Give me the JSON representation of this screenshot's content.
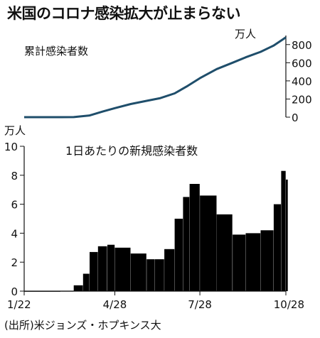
{
  "title": "米国のコロナ感染拡大が止まらない",
  "source": "(出所)米ジョンズ・ホプキンス大",
  "chart_data": [
    {
      "type": "line",
      "title": "累計感染者数",
      "unit": "万人",
      "ylim": [
        0,
        900
      ],
      "yticks": [
        "0",
        "200",
        "400",
        "600",
        "800"
      ],
      "color": "#1f4e6b",
      "x": [
        "1/22",
        "2/1",
        "2/15",
        "3/1",
        "3/15",
        "4/1",
        "4/15",
        "4/28",
        "5/15",
        "6/1",
        "6/15",
        "7/1",
        "7/15",
        "7/28",
        "8/15",
        "9/1",
        "9/15",
        "10/1",
        "10/15",
        "10/28"
      ],
      "values": [
        0,
        0,
        0,
        0,
        1,
        19,
        62,
        99,
        145,
        180,
        208,
        262,
        345,
        430,
        530,
        600,
        660,
        720,
        790,
        880
      ]
    },
    {
      "type": "bar",
      "title": "1日あたりの新規感染者数",
      "unit": "万人",
      "ylim": [
        0,
        10
      ],
      "yticks": [
        "0",
        "2",
        "4",
        "6",
        "8",
        "10"
      ],
      "xticks": [
        "1/22",
        "4/28",
        "7/28",
        "10/28"
      ],
      "color": "#000000",
      "x": [
        "1/22",
        "3/1",
        "3/15",
        "3/25",
        "4/1",
        "4/10",
        "4/20",
        "4/28",
        "5/15",
        "6/1",
        "6/10",
        "6/20",
        "7/1",
        "7/10",
        "7/17",
        "7/28",
        "8/15",
        "9/1",
        "9/15",
        "10/1",
        "10/15",
        "10/23",
        "10/28"
      ],
      "values": [
        0,
        0.01,
        0.4,
        1.2,
        2.7,
        3.1,
        3.2,
        3.0,
        2.6,
        2.2,
        2.2,
        2.9,
        5.0,
        6.5,
        7.4,
        6.6,
        5.3,
        3.9,
        4.0,
        4.2,
        6.0,
        8.3,
        7.7
      ]
    }
  ]
}
